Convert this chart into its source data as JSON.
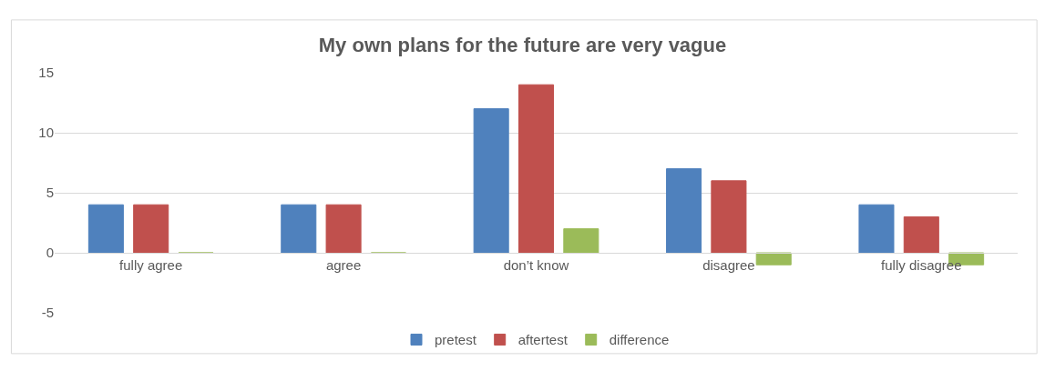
{
  "chart_data": {
    "type": "bar",
    "title": "My own plans for the future are very vague",
    "categories": [
      "fully agree",
      "agree",
      "don’t know",
      "disagree",
      "fully disagree"
    ],
    "series": [
      {
        "name": "pretest",
        "color": "#4f81bd",
        "values": [
          4,
          4,
          12,
          7,
          4
        ]
      },
      {
        "name": "aftertest",
        "color": "#c0504d",
        "values": [
          4,
          4,
          14,
          6,
          3
        ]
      },
      {
        "name": "difference",
        "color": "#9bbb59",
        "values": [
          0,
          0,
          2,
          -1,
          -1
        ]
      }
    ],
    "ylim": [
      -5,
      15
    ],
    "yticks": [
      -5,
      0,
      5,
      10,
      15
    ],
    "grid": "y",
    "legend": "bottom"
  }
}
